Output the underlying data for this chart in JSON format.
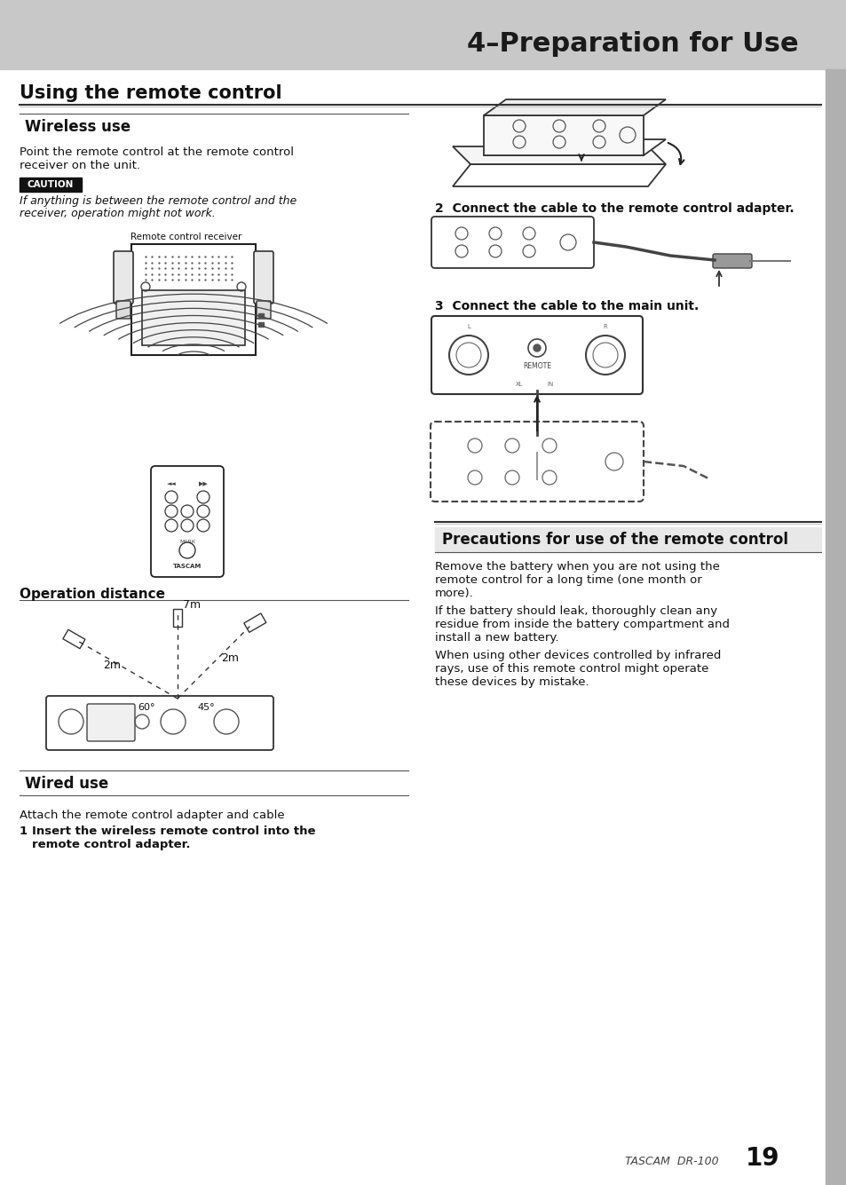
{
  "page_bg": "#ffffff",
  "header_bg": "#c8c8c8",
  "header_text": "4–Preparation for Use",
  "section_title": "Using the remote control",
  "subsection1": "Wireless use",
  "subsection1_body": "Point the remote control at the remote control\nreceiver on the unit.",
  "caution_label": "CAUTION",
  "caution_body": "If anything is between the remote control and the\nreceiver, operation might not work.",
  "rc_receiver_label": "Remote control receiver",
  "op_distance_label": "Operation distance",
  "dist_7m": "7m",
  "dist_2m_left": "2m",
  "dist_2m_right": "2m",
  "angle_60": "60°",
  "angle_45": "45°",
  "subsection2": "Wired use",
  "wired_body": "Attach the remote control adapter and cable",
  "step1_bold": "1  Insert the wireless remote control into the\n    remote control adapter.",
  "step2": "2  Connect the cable to the remote control adapter.",
  "step3": "3  Connect the cable to the main unit.",
  "precaution_title": "Precautions for use of the remote control",
  "precaution_body1": "Remove the battery when you are not using the\nremote control for a long time (one month or\nmore).",
  "precaution_body2": "If the battery should leak, thoroughly clean any\nresidue from inside the battery compartment and\ninstall a new battery.",
  "precaution_body3": "When using other devices controlled by infrared\nrays, use of this remote control might operate\nthese devices by mistake.",
  "footer_text": "TASCAM  DR-100",
  "page_number": "19",
  "right_bar_color": "#b0b0b0",
  "line_color": "#555555"
}
